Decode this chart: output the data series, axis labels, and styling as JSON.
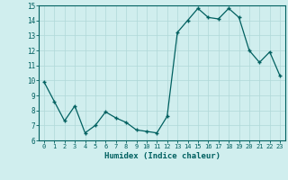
{
  "x": [
    0,
    1,
    2,
    3,
    4,
    5,
    6,
    7,
    8,
    9,
    10,
    11,
    12,
    13,
    14,
    15,
    16,
    17,
    18,
    19,
    20,
    21,
    22,
    23
  ],
  "y": [
    9.9,
    8.6,
    7.3,
    8.3,
    6.5,
    7.0,
    7.9,
    7.5,
    7.2,
    6.7,
    6.6,
    6.5,
    7.6,
    13.2,
    14.0,
    14.8,
    14.2,
    14.1,
    14.8,
    14.2,
    12.0,
    11.2,
    11.9,
    10.3
  ],
  "xlabel": "Humidex (Indice chaleur)",
  "ylim": [
    6,
    15
  ],
  "xlim": [
    -0.5,
    23.5
  ],
  "yticks": [
    6,
    7,
    8,
    9,
    10,
    11,
    12,
    13,
    14,
    15
  ],
  "xticks": [
    0,
    1,
    2,
    3,
    4,
    5,
    6,
    7,
    8,
    9,
    10,
    11,
    12,
    13,
    14,
    15,
    16,
    17,
    18,
    19,
    20,
    21,
    22,
    23
  ],
  "line_color": "#006060",
  "marker_color": "#006060",
  "bg_color": "#d0eeee",
  "grid_color": "#b0d8d8",
  "tick_label_color": "#006060",
  "xlabel_color": "#006060"
}
